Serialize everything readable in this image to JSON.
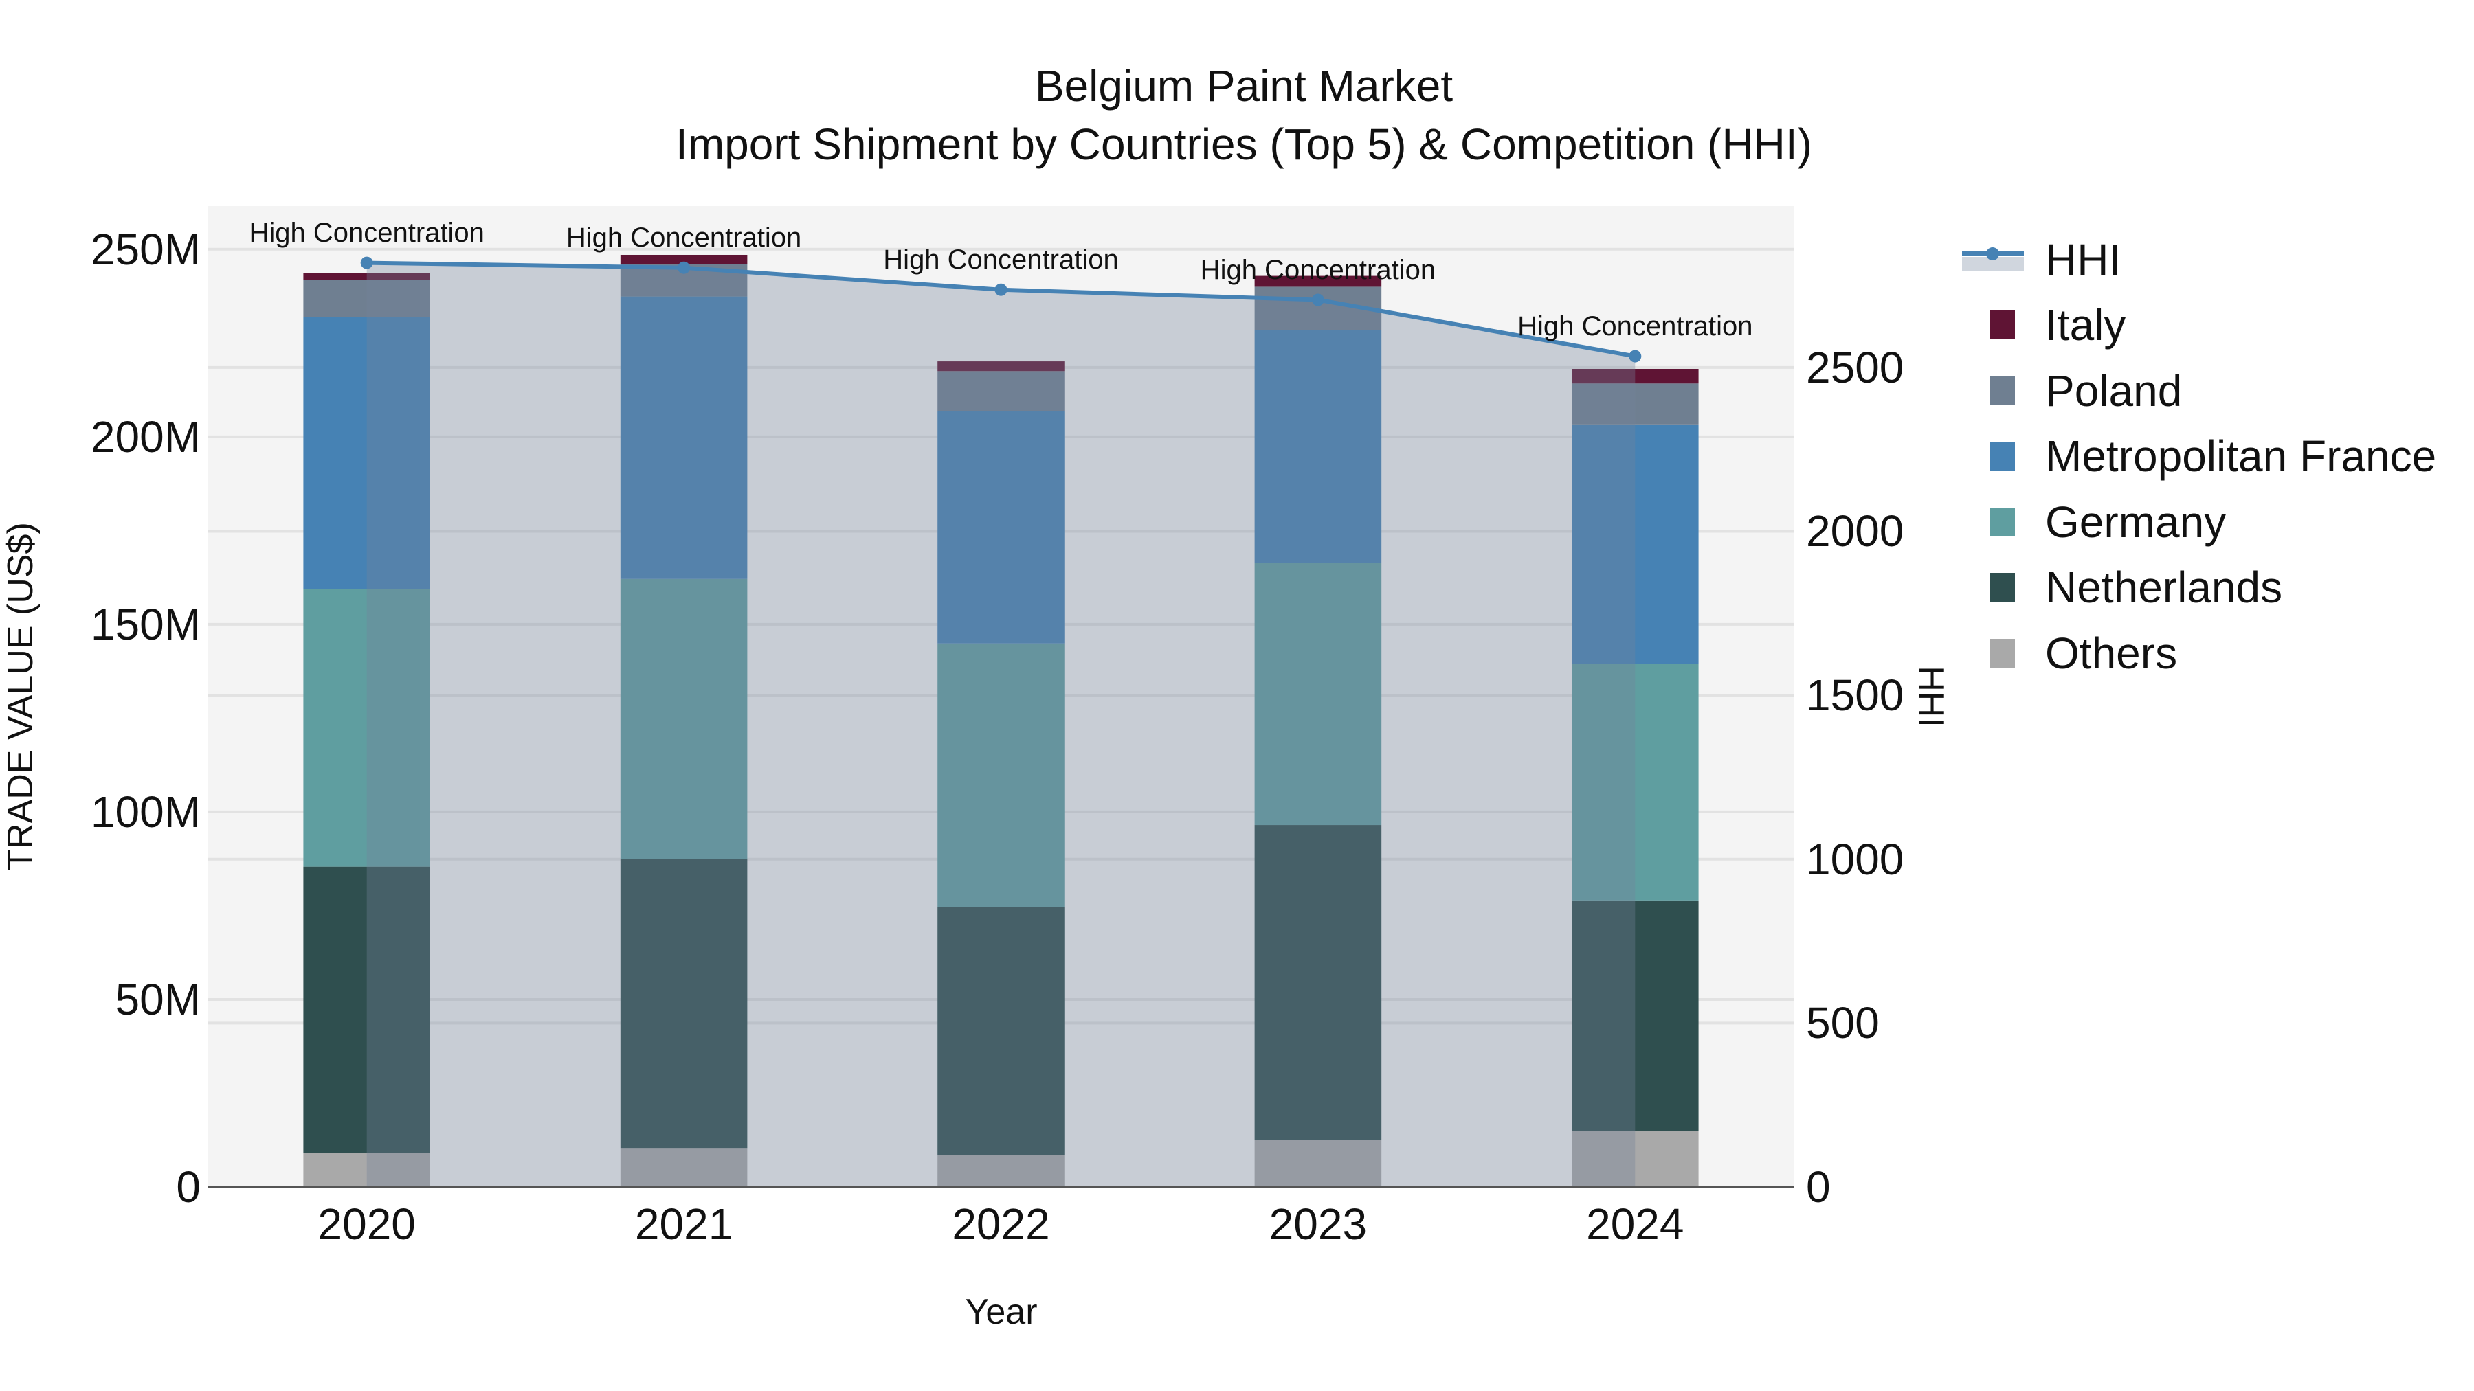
{
  "title": {
    "line1": "Belgium Paint Market",
    "line2": "Import Shipment by Countries (Top 5) & Competition (HHI)"
  },
  "axes": {
    "x_title": "Year",
    "y_title": "TRADE VALUE (US$)",
    "y2_title": "HHI",
    "y_ticks": [
      {
        "label": "0",
        "value": 0
      },
      {
        "label": "50M",
        "value": 50
      },
      {
        "label": "100M",
        "value": 100
      },
      {
        "label": "150M",
        "value": 150
      },
      {
        "label": "200M",
        "value": 200
      },
      {
        "label": "250M",
        "value": 250
      }
    ],
    "y2_ticks": [
      {
        "label": "0",
        "value": 0
      },
      {
        "label": "500",
        "value": 500
      },
      {
        "label": "1000",
        "value": 1000
      },
      {
        "label": "1500",
        "value": 1500
      },
      {
        "label": "2000",
        "value": 2000
      },
      {
        "label": "2500",
        "value": 2500
      }
    ]
  },
  "legend": {
    "items": [
      {
        "label": "HHI",
        "type": "line",
        "color": "#4682b4"
      },
      {
        "label": "Italy",
        "type": "bar",
        "color": "#5f1434"
      },
      {
        "label": "Poland",
        "type": "bar",
        "color": "#6f7f91"
      },
      {
        "label": "Metropolitan France",
        "type": "bar",
        "color": "#4682b4"
      },
      {
        "label": "Germany",
        "type": "bar",
        "color": "#5f9ea0"
      },
      {
        "label": "Netherlands",
        "type": "bar",
        "color": "#2f4f4f"
      },
      {
        "label": "Others",
        "type": "bar",
        "color": "#a9a9a9"
      }
    ]
  },
  "annotations": [
    "High Concentration",
    "High Concentration",
    "High Concentration",
    "High Concentration",
    "High Concentration"
  ],
  "chart_data": {
    "type": "bar",
    "stacked": true,
    "title": "Belgium Paint Market — Import Shipment by Countries (Top 5) & Competition (HHI)",
    "xlabel": "Year",
    "ylabel": "TRADE VALUE (US$)",
    "y2label": "HHI",
    "categories": [
      "2020",
      "2021",
      "2022",
      "2023",
      "2024"
    ],
    "ylim": [
      0,
      261.5
    ],
    "y_unit": "M US$",
    "y2lim": [
      0,
      2992
    ],
    "grid": true,
    "legend_position": "right",
    "series": [
      {
        "name": "Others",
        "color": "#a9a9a9",
        "values": [
          9.0,
          10.4,
          8.6,
          12.6,
          15.0
        ]
      },
      {
        "name": "Netherlands",
        "color": "#2f4f4f",
        "values": [
          76.4,
          77.0,
          66.1,
          83.9,
          61.4
        ]
      },
      {
        "name": "Germany",
        "color": "#5f9ea0",
        "values": [
          74.0,
          74.7,
          70.2,
          69.8,
          63.0
        ]
      },
      {
        "name": "Metropolitan France",
        "color": "#4682b4",
        "values": [
          72.6,
          75.3,
          61.9,
          62.1,
          63.9
        ]
      },
      {
        "name": "Poland",
        "color": "#6f7f91",
        "values": [
          9.9,
          8.6,
          10.7,
          11.6,
          10.9
        ]
      },
      {
        "name": "Italy",
        "color": "#5f1434",
        "values": [
          1.7,
          2.5,
          2.6,
          2.9,
          3.9
        ]
      }
    ],
    "line_series": [
      {
        "name": "HHI",
        "axis": "y2",
        "color": "#4682b4",
        "values": [
          2819,
          2804,
          2737,
          2706,
          2534
        ],
        "annotations": [
          "High Concentration",
          "High Concentration",
          "High Concentration",
          "High Concentration",
          "High Concentration"
        ]
      }
    ]
  }
}
